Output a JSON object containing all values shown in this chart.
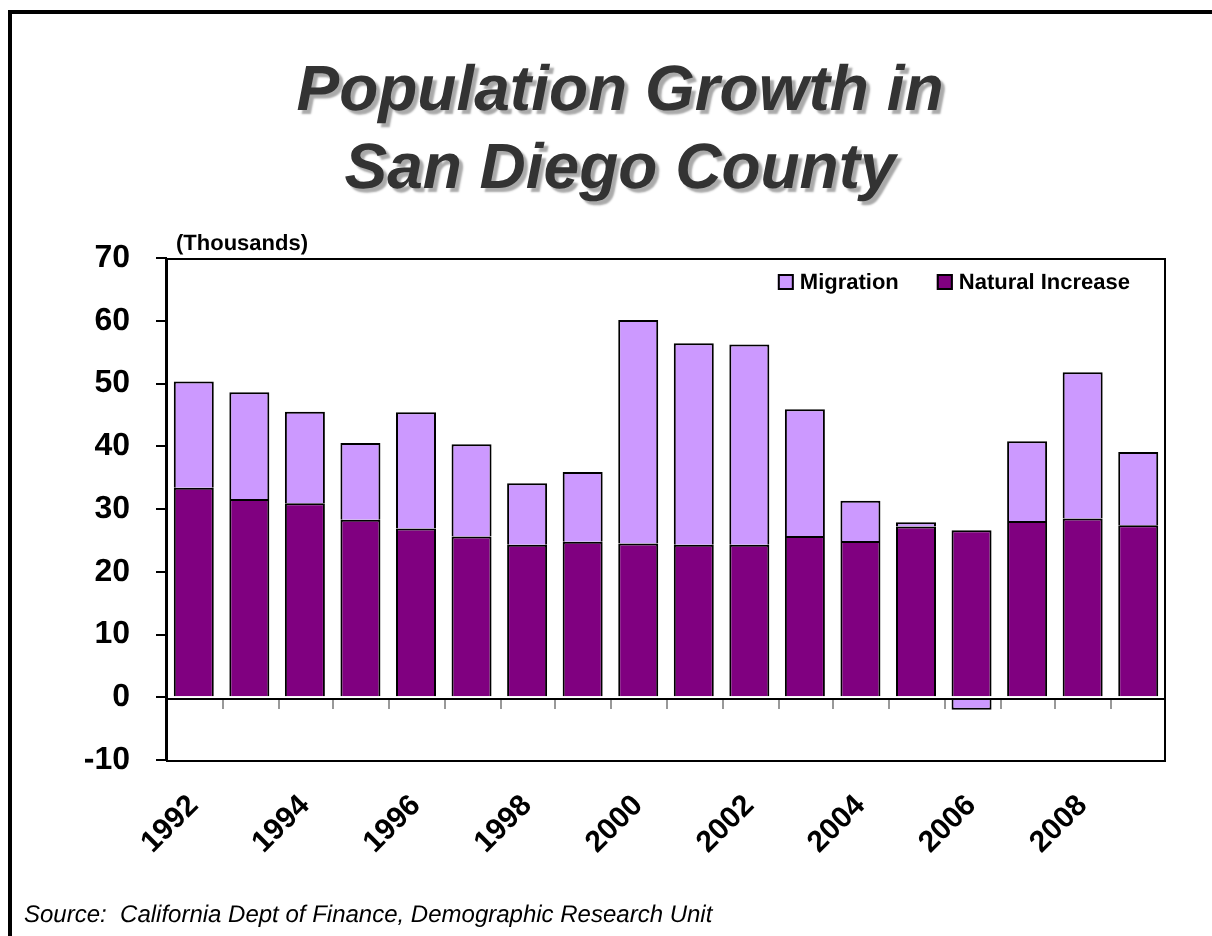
{
  "chart_data": {
    "type": "bar",
    "title": "Population Growth in San Diego County",
    "ylabel": "(Thousands)",
    "annotations": [
      "Source:  California Dept of Finance, Demographic Research Unit"
    ],
    "categories": [
      "1992",
      null,
      "1994",
      null,
      "1996",
      null,
      "1998",
      null,
      "2000",
      null,
      "2002",
      null,
      "2004",
      null,
      "2006",
      null,
      "2008",
      null
    ],
    "stacked": true,
    "series": [
      {
        "name": "Natural Increase",
        "color": "#800080",
        "values": [
          33.4,
          31.6,
          30.9,
          28.3,
          26.9,
          25.6,
          24.3,
          24.8,
          24.5,
          24.3,
          24.3,
          25.7,
          24.9,
          27.2,
          26.6,
          28.1,
          28.5,
          27.4
        ]
      },
      {
        "name": "Migration",
        "color": "#cc99ff",
        "values": [
          16.9,
          17.0,
          14.6,
          12.2,
          18.5,
          14.7,
          9.8,
          11.1,
          35.6,
          32.1,
          31.9,
          20.2,
          6.4,
          0.7,
          -2.0,
          12.7,
          23.3,
          11.7
        ]
      }
    ],
    "ylim": [
      -10,
      70
    ],
    "yticks": [
      -10,
      0,
      10,
      20,
      30,
      40,
      50,
      60,
      70
    ],
    "legend": "top right"
  }
}
